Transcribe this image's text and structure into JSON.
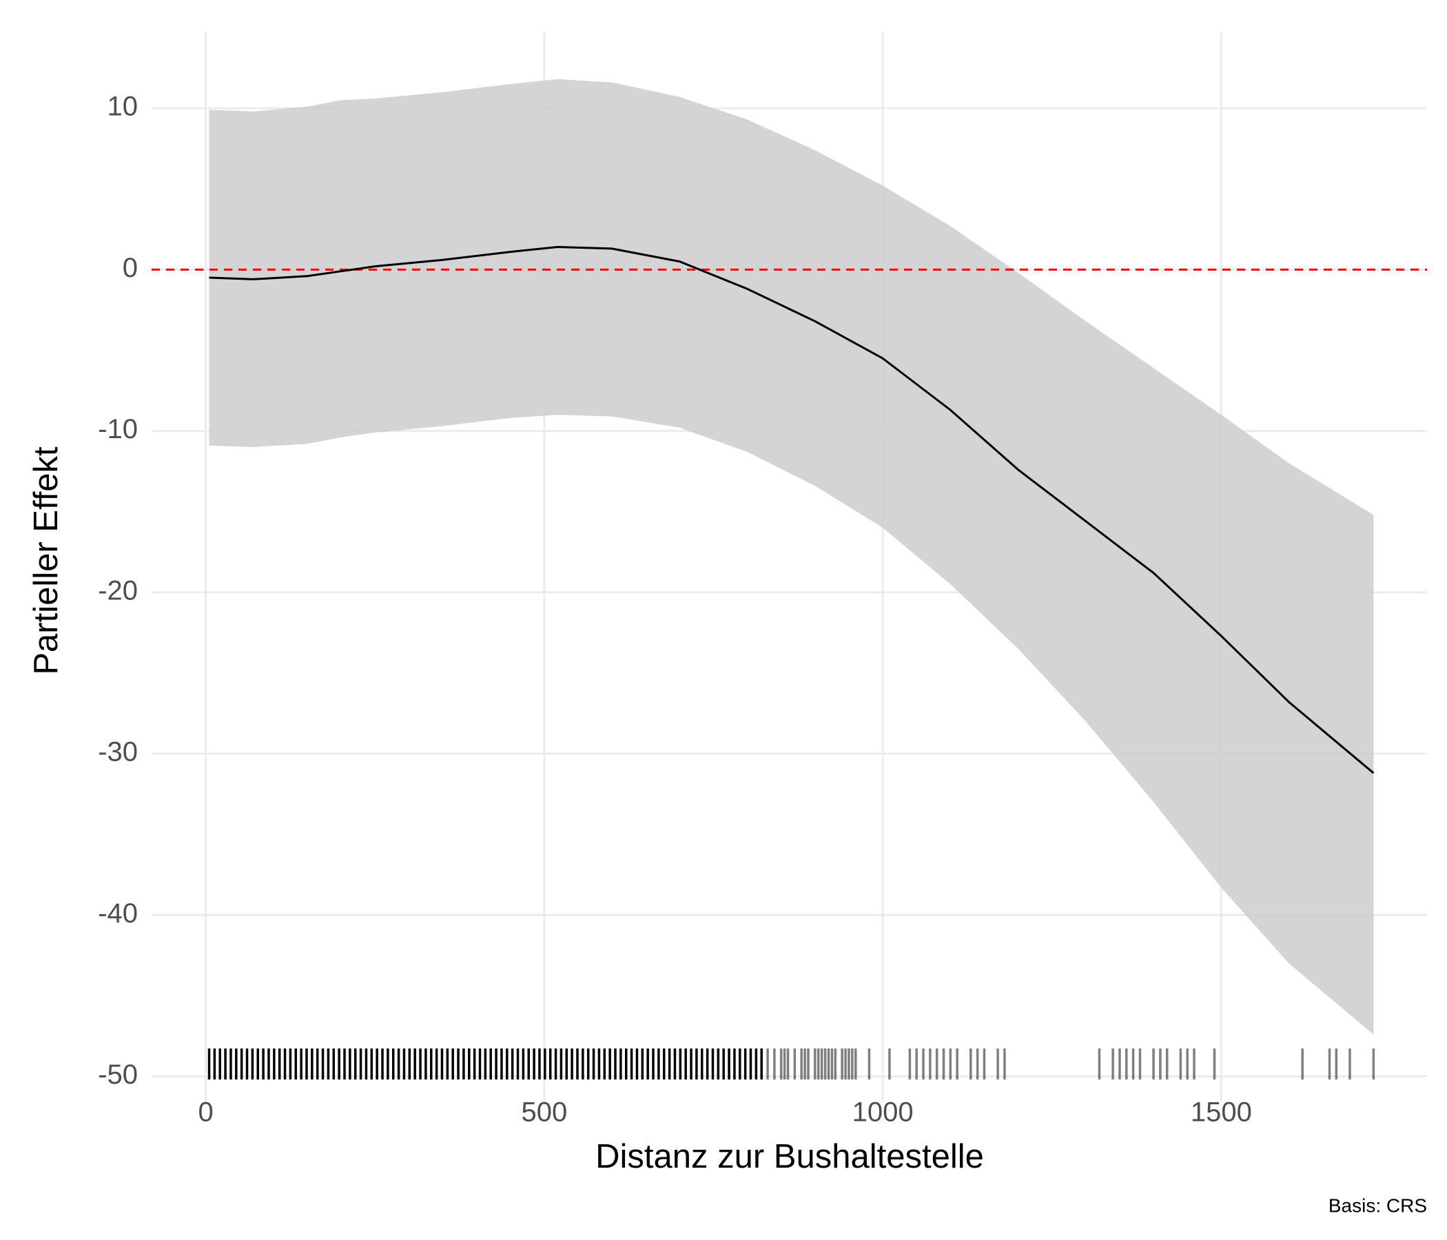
{
  "chart_data": {
    "type": "line",
    "xlabel": "Distanz zur Bushaltestelle",
    "ylabel": "Partieller Effekt",
    "caption": "Basis: CRS",
    "x": [
      5,
      70,
      150,
      200,
      250,
      350,
      450,
      520,
      600,
      700,
      800,
      900,
      1000,
      1100,
      1200,
      1300,
      1400,
      1500,
      1600,
      1725
    ],
    "fit": [
      -0.5,
      -0.6,
      -0.4,
      -0.1,
      0.2,
      0.6,
      1.1,
      1.4,
      1.3,
      0.5,
      -1.2,
      -3.2,
      -5.5,
      -8.7,
      -12.4,
      -15.6,
      -18.8,
      -22.7,
      -26.8,
      -31.2
    ],
    "upper": [
      9.9,
      9.8,
      10.1,
      10.5,
      10.6,
      11.0,
      11.5,
      11.8,
      11.6,
      10.7,
      9.3,
      7.4,
      5.2,
      2.7,
      -0.2,
      -3.2,
      -6.1,
      -9.0,
      -12.0,
      -15.2
    ],
    "lower": [
      -10.9,
      -11.0,
      -10.8,
      -10.4,
      -10.1,
      -9.7,
      -9.2,
      -9.0,
      -9.1,
      -9.8,
      -11.3,
      -13.4,
      -16.0,
      -19.5,
      -23.5,
      -28.0,
      -33.0,
      -38.3,
      -43.0,
      -47.4
    ],
    "line_color": "#000000",
    "ribbon_color": "#cccccc",
    "hline": 0,
    "hline_color": "#ff0000",
    "rug": [
      5,
      13,
      21,
      29,
      37,
      45,
      53,
      61,
      69,
      77,
      85,
      93,
      101,
      109,
      117,
      125,
      133,
      141,
      149,
      157,
      165,
      173,
      181,
      189,
      197,
      205,
      213,
      221,
      229,
      237,
      245,
      253,
      261,
      269,
      277,
      285,
      293,
      301,
      309,
      317,
      325,
      333,
      341,
      349,
      357,
      365,
      373,
      381,
      389,
      397,
      405,
      413,
      421,
      429,
      437,
      445,
      453,
      461,
      469,
      477,
      485,
      493,
      501,
      509,
      517,
      525,
      533,
      541,
      549,
      557,
      565,
      573,
      581,
      589,
      597,
      605,
      613,
      621,
      629,
      637,
      645,
      653,
      661,
      669,
      677,
      685,
      693,
      701,
      709,
      717,
      725,
      733,
      741,
      749,
      757,
      765,
      773,
      781,
      789,
      797,
      805,
      813,
      821,
      830,
      840,
      850,
      855,
      860,
      870,
      880,
      885,
      890,
      900,
      905,
      910,
      915,
      920,
      925,
      930,
      940,
      945,
      950,
      955,
      960,
      980,
      1010,
      1040,
      1050,
      1060,
      1070,
      1080,
      1090,
      1100,
      1110,
      1130,
      1140,
      1150,
      1170,
      1180,
      1320,
      1340,
      1350,
      1360,
      1370,
      1380,
      1400,
      1410,
      1420,
      1440,
      1450,
      1460,
      1490,
      1620,
      1660,
      1670,
      1690,
      1725
    ],
    "xlim": [
      -80,
      1804
    ],
    "xticks": [
      0,
      500,
      1000,
      1500
    ],
    "ylim": [
      -51.6,
      14.7
    ],
    "yticks": [
      -50,
      -40,
      -30,
      -20,
      -10,
      0,
      10
    ],
    "grid": true
  }
}
